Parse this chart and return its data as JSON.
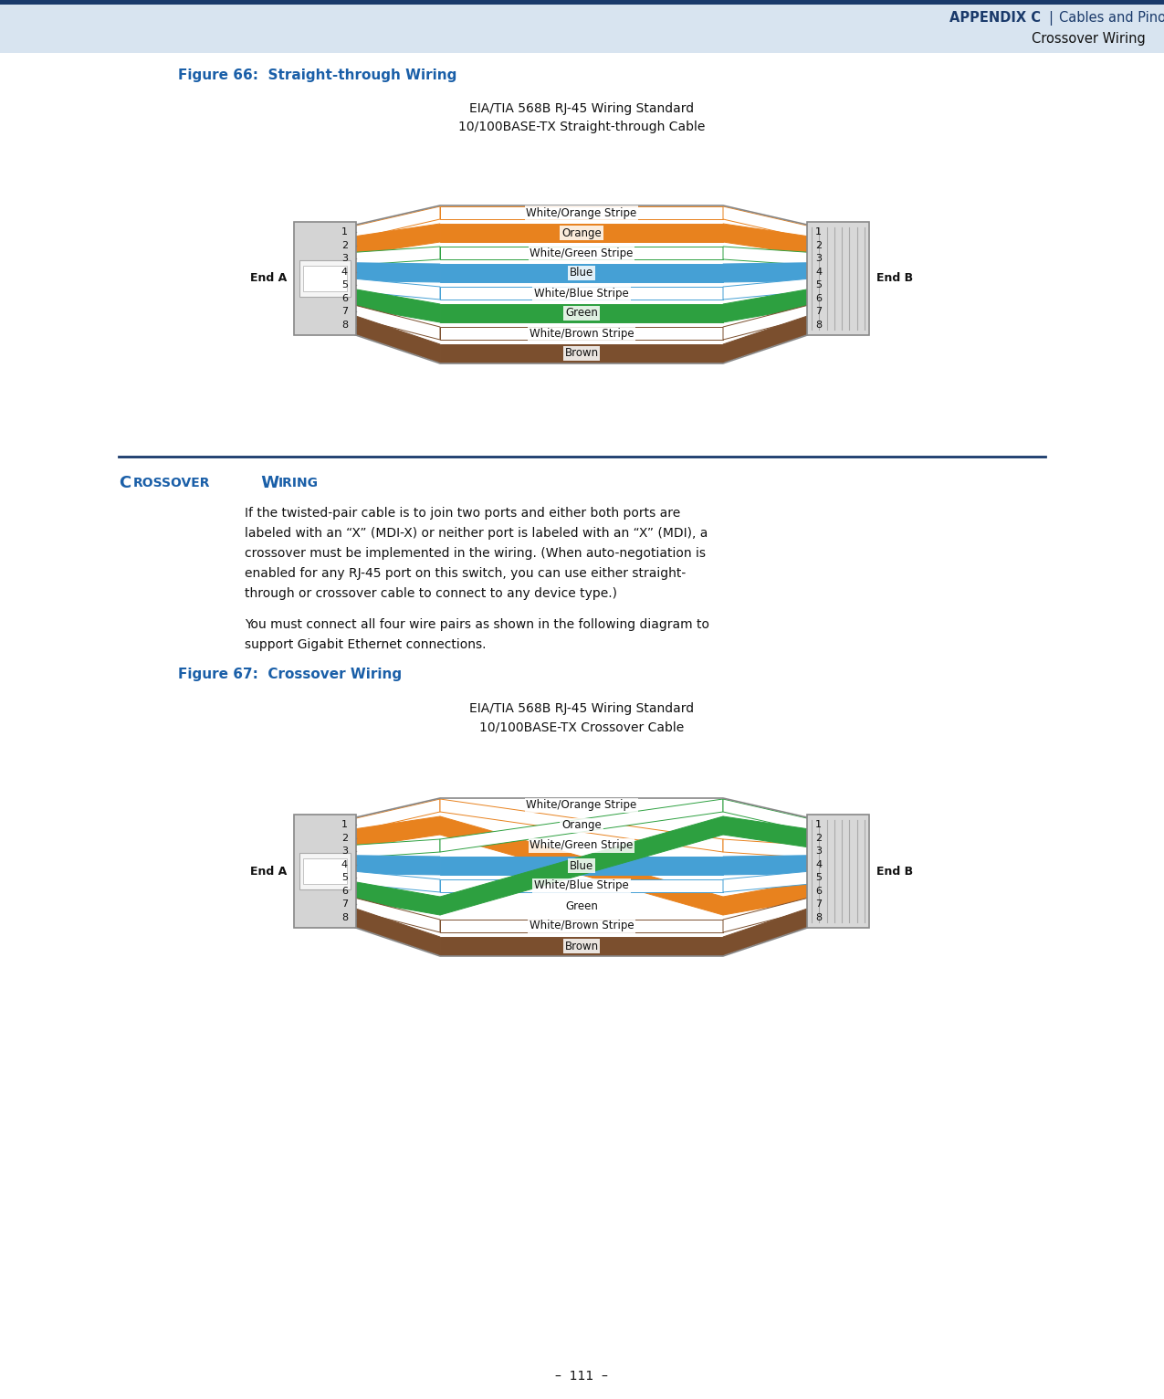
{
  "content_bg": "#ffffff",
  "header_bar_color": "#1a3a6b",
  "header_light_bg": "#d8e4f0",
  "appendix_text": "APPENDIX C",
  "pipe": "|",
  "header_right1": "Cables and Pinouts",
  "header_right2": "Crossover Wiring",
  "fig66_title": "Figure 66:  Straight-through Wiring",
  "fig66_sub1": "EIA/TIA 568B RJ-45 Wiring Standard",
  "fig66_sub2": "10/100BASE-TX Straight-through Cable",
  "fig67_title": "Figure 67:  Crossover Wiring",
  "fig67_sub1": "EIA/TIA 568B RJ-45 Wiring Standard",
  "fig67_sub2": "10/100BASE-TX Crossover Cable",
  "body_text1a": "If the twisted-pair cable is to join two ports and either both ports are",
  "body_text1b": "labeled with an “X” (MDI-X) or neither port is labeled with an “X” (MDI), a",
  "body_text1c": "crossover must be implemented in the wiring. (When auto-negotiation is",
  "body_text1d": "enabled for any RJ-45 port on this switch, you can use either straight-",
  "body_text1e": "through or crossover cable to connect to any device type.)",
  "body_text2a": "You must connect all four wire pairs as shown in the following diagram to",
  "body_text2b": "support Gigabit Ethernet connections.",
  "page_num": "–  111  –",
  "wire_labels": [
    "White/Orange Stripe",
    "Orange",
    "White/Green Stripe",
    "Blue",
    "White/Blue Stripe",
    "Green",
    "White/Brown Stripe",
    "Brown"
  ],
  "wire_fill_colors": [
    "#ffffff",
    "#e8821e",
    "#ffffff",
    "#45a0d5",
    "#ffffff",
    "#2da040",
    "#ffffff",
    "#7b4f2e"
  ],
  "wire_edge_colors": [
    "#e8821e",
    "#e8821e",
    "#2da040",
    "#45a0d5",
    "#45a0d5",
    "#2da040",
    "#7b4f2e",
    "#7b4f2e"
  ],
  "end_a": "End A",
  "end_b": "End B",
  "divider_color": "#1a3a6b",
  "section_title_color": "#1a5fa8",
  "figure_title_color": "#1a5fa8",
  "text_color": "#111111"
}
